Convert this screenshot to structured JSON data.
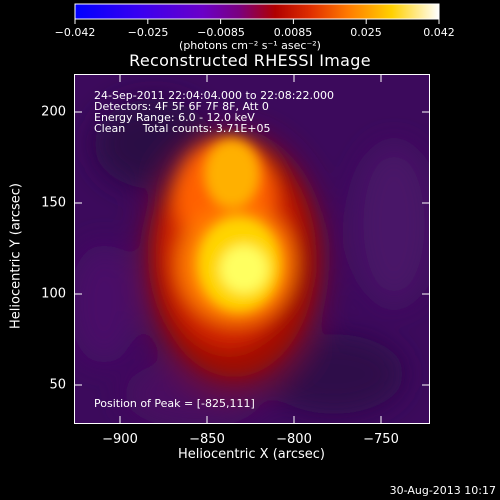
{
  "colorbar": {
    "ticks": [
      "−0.042",
      "−0.025",
      "−0.0085",
      "0.0085",
      "0.025",
      "0.042"
    ],
    "units": "(photons cm⁻² s⁻¹ asec⁻²)"
  },
  "title": "Reconstructed RHESSI Image",
  "annotations": {
    "time": "24-Sep-2011 22:04:04.000 to 22:08:22.000",
    "detectors": "Detectors: 4F 5F 6F 7F 8F, Att 0",
    "energy": "Energy Range: 6.0 - 12.0 keV",
    "clean": "Clean     Total counts: 3.71E+05",
    "peak": "Position of Peak = [-825,111]"
  },
  "axes": {
    "xlabel": "Heliocentric X (arcsec)",
    "ylabel": "Heliocentric Y (arcsec)",
    "xticks": [
      "−900",
      "−850",
      "−800",
      "−750"
    ],
    "yticks": [
      "200",
      "150",
      "100",
      "50"
    ]
  },
  "footer": "30-Aug-2013 10:17",
  "colors": {
    "background": "#000000",
    "foreground": "#ffffff"
  }
}
